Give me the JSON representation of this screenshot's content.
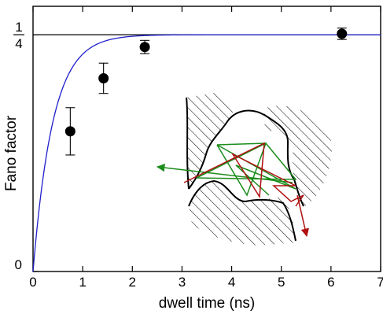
{
  "chart_data": {
    "type": "scatter",
    "title": "",
    "xlabel": "dwell time (ns)",
    "ylabel": "Fano factor",
    "xlim": [
      0,
      7
    ],
    "ylim": [
      0,
      0.28
    ],
    "x_ticks": [
      "0",
      "1",
      "2",
      "3",
      "4",
      "5",
      "6",
      "7"
    ],
    "y_ticks": [
      {
        "value": 0,
        "label": "0"
      },
      {
        "value": 0.25,
        "label_num": "1",
        "label_den": "4"
      }
    ],
    "grid": false,
    "reference_line": {
      "y": 0.25,
      "color": "#000000"
    },
    "points": [
      {
        "x": 0.75,
        "y": 0.148,
        "err": 0.025
      },
      {
        "x": 1.42,
        "y": 0.204,
        "err": 0.016
      },
      {
        "x": 2.25,
        "y": 0.237,
        "err": 0.007
      },
      {
        "x": 6.22,
        "y": 0.251,
        "err": 0.006
      }
    ],
    "fit_curve": {
      "formula": "y = 0.25 * (1 - exp(-x / 0.4))",
      "asymptote": 0.25,
      "color": "#1f1fcc"
    },
    "inset": {
      "description": "chaotic cavity with hatched walls and ray trajectories",
      "ray_colors": [
        "#1a8c1a",
        "#b01010"
      ]
    }
  }
}
